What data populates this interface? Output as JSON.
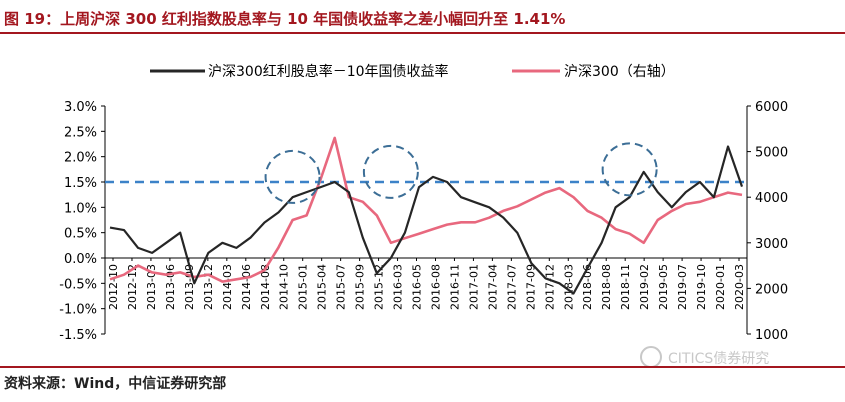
{
  "figure_title": "图 19：上周沪深 300 红利指数股息率与 10 年国债收益率之差小幅回升至 1.41%",
  "source_note": "资料来源：Wind，中信证券研究部",
  "watermark": "CITICS债券研究",
  "chart_data": {
    "type": "line",
    "title": "",
    "xlabel": "",
    "ylabel_left": "",
    "ylabel_right": "",
    "ylim_left": [
      -1.5,
      3.0
    ],
    "ylim_right": [
      1000,
      6000
    ],
    "yticks_left": [
      "3.0%",
      "2.5%",
      "2.0%",
      "1.5%",
      "1.0%",
      "0.5%",
      "0.0%",
      "-0.5%",
      "-1.0%",
      "-1.5%"
    ],
    "yticks_right": [
      "6000",
      "5000",
      "4000",
      "3000",
      "2000",
      "1000"
    ],
    "x_categories": [
      "2012-10",
      "2012-12",
      "2013-02",
      "2013-04",
      "2013-06",
      "2013-08",
      "2013-10",
      "2013-12",
      "2014-02",
      "2014-04",
      "2014-06",
      "2014-08",
      "2014-10",
      "2014-12",
      "2015-02",
      "2015-04",
      "2015-06",
      "2015-08",
      "2015-10",
      "2015-12",
      "2016-02",
      "2016-04",
      "2016-06",
      "2016-08",
      "2016-10",
      "2016-12",
      "2017-02",
      "2017-04",
      "2017-06",
      "2017-08",
      "2017-10",
      "2017-12",
      "2018-02",
      "2018-04",
      "2018-06",
      "2018-08",
      "2018-10",
      "2018-12",
      "2019-02",
      "2019-04",
      "2019-06",
      "2019-08",
      "2019-10",
      "2019-12",
      "2020-02",
      "2020-04"
    ],
    "x_tick_labels": [
      "2012-10",
      "2012-12",
      "2013-03",
      "2013-06",
      "2013-09",
      "2013-12",
      "2014-03",
      "2014-06",
      "2014-08",
      "2014-10",
      "2015-01",
      "2015-04",
      "2015-07",
      "2015-09",
      "2015-12",
      "2016-03",
      "2016-05",
      "2016-08",
      "2016-11",
      "2017-01",
      "2017-04",
      "2017-07",
      "2017-09",
      "2017-12",
      "2018-03",
      "2018-06",
      "2018-08",
      "2018-11",
      "2019-02",
      "2019-05",
      "2019-07",
      "2019-10",
      "2020-01",
      "2020-03"
    ],
    "series": [
      {
        "name": "沪深300红利股息率－10年国债收益率",
        "color": "#262626",
        "axis": "left",
        "values": [
          0.6,
          0.55,
          0.2,
          0.1,
          0.3,
          0.5,
          -0.5,
          0.1,
          0.3,
          0.2,
          0.4,
          0.7,
          0.9,
          1.2,
          1.3,
          1.4,
          1.5,
          1.3,
          0.4,
          -0.3,
          0.0,
          0.5,
          1.4,
          1.6,
          1.5,
          1.2,
          1.1,
          1.0,
          0.8,
          0.5,
          -0.1,
          -0.4,
          -0.5,
          -0.7,
          -0.2,
          0.3,
          1.0,
          1.2,
          1.7,
          1.3,
          1.0,
          1.3,
          1.5,
          1.2,
          2.2,
          1.41
        ]
      },
      {
        "name": "沪深300（右轴）",
        "color": "#e8687e",
        "axis": "right",
        "values": [
          2200,
          2300,
          2500,
          2350,
          2300,
          2350,
          2250,
          2300,
          2150,
          2200,
          2250,
          2400,
          2900,
          3500,
          3600,
          4400,
          5300,
          4000,
          3900,
          3600,
          3000,
          3100,
          3200,
          3300,
          3400,
          3450,
          3450,
          3550,
          3700,
          3800,
          3950,
          4100,
          4200,
          4000,
          3700,
          3550,
          3300,
          3200,
          3000,
          3500,
          3700,
          3850,
          3900,
          4000,
          4100,
          4050
        ]
      }
    ],
    "reference_line": {
      "value": 1.5,
      "axis": "left",
      "style": "dashed",
      "color": "#3c82c8"
    },
    "annotations": [
      {
        "type": "dashed-circle",
        "x": "2014-12",
        "y": 1.6,
        "color": "#3c6e96"
      },
      {
        "type": "dashed-circle",
        "x": "2016-02",
        "y": 1.7,
        "color": "#3c6e96"
      },
      {
        "type": "dashed-circle",
        "x": "2018-12",
        "y": 1.75,
        "color": "#3c6e96"
      }
    ],
    "legend_placement": "top",
    "grid": false
  }
}
